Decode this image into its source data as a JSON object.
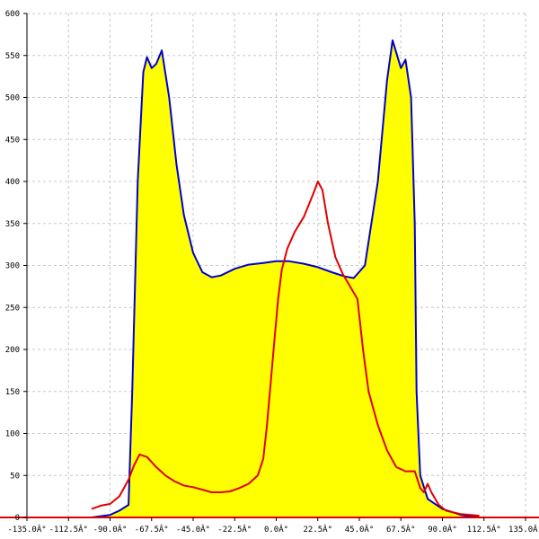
{
  "chart_data": {
    "type": "area",
    "xlim": [
      -135,
      135
    ],
    "ylim": [
      0,
      600
    ],
    "grid": true,
    "colors": {
      "fill": "#ffff00",
      "series_blue": "#0000cc",
      "series_red": "#e00000",
      "baseline": "#e00000",
      "grid": "#c8c8c8",
      "axis": "#000000"
    },
    "x_ticks": [
      -135,
      -112.5,
      -90,
      -67.5,
      -45,
      -22.5,
      0,
      22.5,
      45,
      67.5,
      90,
      112.5,
      135
    ],
    "x_tick_labels": [
      "-135.0Â°",
      "-112.5Â°",
      "-90.0Â°",
      "-67.5Â°",
      "-45.0Â°",
      "-22.5Â°",
      "0.0Â°",
      "22.5Â°",
      "45.0Â°",
      "67.5Â°",
      "90.0Â°",
      "112.5Â°",
      "135.0Â°"
    ],
    "y_ticks": [
      0,
      50,
      100,
      150,
      200,
      250,
      300,
      350,
      400,
      450,
      500,
      550,
      600
    ],
    "y_tick_labels": [
      "0",
      "50",
      "100",
      "150",
      "200",
      "250",
      "300",
      "350",
      "400",
      "450",
      "500",
      "550",
      "600"
    ],
    "series": [
      {
        "color": "#0000cc",
        "filled": true,
        "points": [
          [
            -100,
            0
          ],
          [
            -90,
            3
          ],
          [
            -85,
            8
          ],
          [
            -80,
            15
          ],
          [
            -78,
            150
          ],
          [
            -75,
            400
          ],
          [
            -72,
            530
          ],
          [
            -70,
            548
          ],
          [
            -67.5,
            535
          ],
          [
            -65,
            540
          ],
          [
            -62,
            556
          ],
          [
            -58,
            500
          ],
          [
            -54,
            420
          ],
          [
            -50,
            360
          ],
          [
            -45,
            315
          ],
          [
            -40,
            292
          ],
          [
            -35,
            286
          ],
          [
            -30,
            288
          ],
          [
            -22.5,
            296
          ],
          [
            -15,
            301
          ],
          [
            -7,
            303
          ],
          [
            0,
            305
          ],
          [
            7,
            305
          ],
          [
            15,
            302
          ],
          [
            22.5,
            298
          ],
          [
            30,
            292
          ],
          [
            37,
            287
          ],
          [
            42,
            285
          ],
          [
            48,
            300
          ],
          [
            55,
            400
          ],
          [
            60,
            520
          ],
          [
            63,
            568
          ],
          [
            67.5,
            535
          ],
          [
            70,
            545
          ],
          [
            73,
            500
          ],
          [
            75,
            350
          ],
          [
            76,
            150
          ],
          [
            78,
            50
          ],
          [
            82,
            22
          ],
          [
            90,
            10
          ],
          [
            100,
            3
          ],
          [
            110,
            0
          ]
        ]
      },
      {
        "color": "#e00000",
        "filled": false,
        "points": [
          [
            -100,
            10
          ],
          [
            -95,
            14
          ],
          [
            -90,
            16
          ],
          [
            -85,
            25
          ],
          [
            -80,
            45
          ],
          [
            -77,
            62
          ],
          [
            -74,
            75
          ],
          [
            -70,
            72
          ],
          [
            -65,
            60
          ],
          [
            -60,
            50
          ],
          [
            -55,
            43
          ],
          [
            -50,
            38
          ],
          [
            -45,
            36
          ],
          [
            -40,
            33
          ],
          [
            -35,
            30
          ],
          [
            -30,
            30
          ],
          [
            -25,
            31
          ],
          [
            -20,
            35
          ],
          [
            -15,
            40
          ],
          [
            -10,
            50
          ],
          [
            -7,
            70
          ],
          [
            -5,
            110
          ],
          [
            -3,
            160
          ],
          [
            -1,
            210
          ],
          [
            1,
            260
          ],
          [
            3,
            295
          ],
          [
            6,
            320
          ],
          [
            10,
            340
          ],
          [
            15,
            358
          ],
          [
            20,
            385
          ],
          [
            22.5,
            400
          ],
          [
            25,
            390
          ],
          [
            28,
            350
          ],
          [
            32,
            310
          ],
          [
            36,
            290
          ],
          [
            40,
            275
          ],
          [
            44,
            260
          ],
          [
            47,
            200
          ],
          [
            50,
            150
          ],
          [
            55,
            110
          ],
          [
            60,
            80
          ],
          [
            65,
            60
          ],
          [
            70,
            55
          ],
          [
            75,
            55
          ],
          [
            78,
            35
          ],
          [
            80,
            30
          ],
          [
            82,
            40
          ],
          [
            84,
            30
          ],
          [
            88,
            15
          ],
          [
            92,
            8
          ],
          [
            100,
            4
          ],
          [
            110,
            2
          ]
        ]
      }
    ]
  }
}
